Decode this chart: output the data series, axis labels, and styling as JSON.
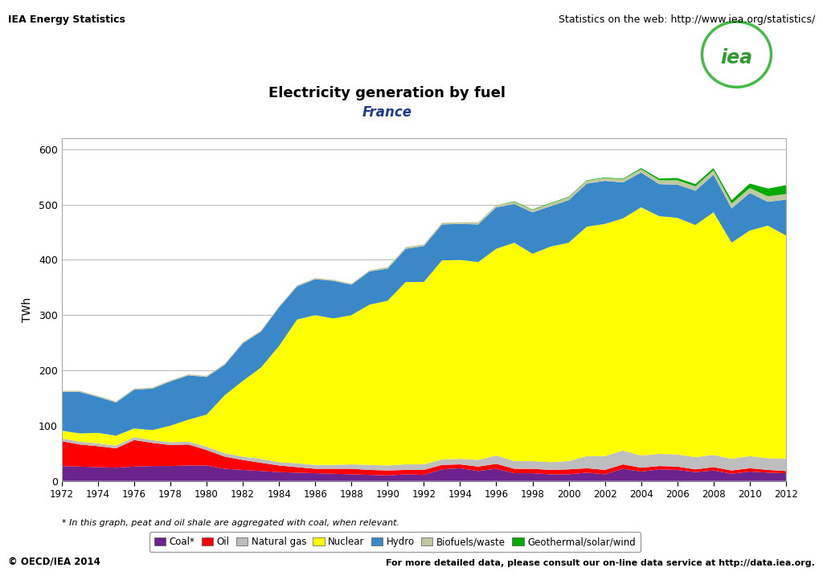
{
  "years": [
    1972,
    1973,
    1974,
    1975,
    1976,
    1977,
    1978,
    1979,
    1980,
    1981,
    1982,
    1983,
    1984,
    1985,
    1986,
    1987,
    1988,
    1989,
    1990,
    1991,
    1992,
    1993,
    1994,
    1995,
    1996,
    1997,
    1998,
    1999,
    2000,
    2001,
    2002,
    2003,
    2004,
    2005,
    2006,
    2007,
    2008,
    2009,
    2010,
    2011,
    2012
  ],
  "coal": [
    27,
    26,
    25,
    24,
    26,
    27,
    27,
    28,
    28,
    22,
    20,
    18,
    16,
    15,
    14,
    13,
    12,
    11,
    10,
    12,
    11,
    21,
    23,
    18,
    22,
    14,
    14,
    12,
    12,
    15,
    12,
    22,
    17,
    21,
    20,
    16,
    19,
    13,
    17,
    15,
    14
  ],
  "oil": [
    45,
    40,
    38,
    35,
    48,
    42,
    38,
    38,
    28,
    22,
    18,
    15,
    12,
    10,
    8,
    9,
    10,
    9,
    9,
    8,
    9,
    8,
    7,
    8,
    9,
    8,
    8,
    8,
    9,
    8,
    8,
    8,
    7,
    6,
    6,
    5,
    6,
    6,
    6,
    5,
    4
  ],
  "natural_gas": [
    5,
    5,
    5,
    5,
    5,
    5,
    5,
    5,
    6,
    6,
    6,
    7,
    6,
    7,
    7,
    7,
    8,
    9,
    9,
    10,
    10,
    10,
    10,
    12,
    15,
    14,
    14,
    14,
    15,
    22,
    25,
    25,
    22,
    22,
    22,
    22,
    22,
    21,
    22,
    21,
    22
  ],
  "nuclear": [
    14,
    15,
    19,
    18,
    16,
    18,
    30,
    40,
    58,
    105,
    137,
    165,
    210,
    260,
    271,
    265,
    270,
    290,
    298,
    330,
    330,
    360,
    360,
    358,
    374,
    395,
    375,
    390,
    395,
    415,
    420,
    420,
    449,
    430,
    428,
    420,
    439,
    391,
    408,
    421,
    404
  ],
  "hydro": [
    70,
    75,
    65,
    60,
    70,
    75,
    80,
    80,
    68,
    55,
    68,
    65,
    70,
    60,
    65,
    68,
    55,
    60,
    58,
    60,
    65,
    65,
    65,
    68,
    75,
    70,
    75,
    73,
    77,
    78,
    78,
    65,
    63,
    58,
    60,
    62,
    68,
    62,
    68,
    43,
    65
  ],
  "biofuels_waste": [
    2,
    2,
    2,
    2,
    2,
    2,
    2,
    2,
    2,
    2,
    2,
    2,
    2,
    2,
    2,
    2,
    2,
    2,
    3,
    3,
    3,
    3,
    3,
    4,
    4,
    4,
    4,
    5,
    5,
    5,
    5,
    6,
    6,
    7,
    8,
    8,
    8,
    9,
    9,
    10,
    10
  ],
  "geothermal_solar_wind": [
    0,
    0,
    0,
    0,
    0,
    0,
    0,
    0,
    0,
    0,
    0,
    0,
    0,
    0,
    0,
    0,
    0,
    0,
    0,
    0,
    0,
    0,
    0,
    0,
    0,
    1,
    1,
    1,
    1,
    1,
    1,
    1,
    2,
    3,
    4,
    4,
    4,
    6,
    8,
    14,
    16
  ],
  "colors": {
    "coal": "#6B238E",
    "oil": "#FF0000",
    "natural_gas": "#BEBEBE",
    "nuclear": "#FFFF00",
    "hydro": "#3A88C8",
    "biofuels_waste": "#C0C8A0",
    "geothermal_solar_wind": "#00AA00"
  },
  "title": "Electricity generation by fuel",
  "subtitle": "France",
  "ylabel": "TWh",
  "ylim": [
    0,
    620
  ],
  "yticks": [
    0,
    100,
    200,
    300,
    400,
    500,
    600
  ],
  "header_left": "IEA Energy Statistics",
  "header_right": "Statistics on the web: http://www.iea.org/statistics/",
  "footer_left": "© OECD/IEA 2014",
  "footer_right": "For more detailed data, please consult our on-line data service at http://data.iea.org.",
  "footnote": "* In this graph, peat and oil shale are aggregated with coal, when relevant.",
  "legend_labels": [
    "Coal*",
    "Oil",
    "Natural gas",
    "Nuclear",
    "Hydro",
    "Biofuels/waste",
    "Geothermal/solar/wind"
  ]
}
